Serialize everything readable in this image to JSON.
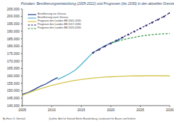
{
  "chart_data": {
    "type": "line",
    "title": "Potsdam:  Bevölkerungsentwicklung (2005-2022) und Prognosen (bis 2030) in den aktuellen Grenzen",
    "annotations": [
      "By Hans G. Oberlack",
      "Quellen: Amt für Statistik Berlin-Brandenburg, Landesamt für Bauen und Verkehr"
    ],
    "x": [
      2005,
      2006,
      2007,
      2008,
      2009,
      2010,
      2011,
      2012,
      2013,
      2014,
      2015,
      2016,
      2017,
      2018,
      2019,
      2020,
      2021,
      2022,
      2023,
      2024,
      2025,
      2026,
      2027,
      2028,
      2029,
      2030
    ],
    "xlim": [
      2005,
      2030
    ],
    "xticks": [
      2005,
      2010,
      2015,
      2020,
      2025,
      2030
    ],
    "ylim": [
      140000,
      205000
    ],
    "yticks": [
      {
        "value": 140000,
        "label": "140.000"
      },
      {
        "value": 145000,
        "label": "145.000"
      },
      {
        "value": 150000,
        "label": "150.000"
      },
      {
        "value": 155000,
        "label": "155.000"
      },
      {
        "value": 160000,
        "label": "160.000"
      },
      {
        "value": 165000,
        "label": "165.000"
      },
      {
        "value": 170000,
        "label": "170.000"
      },
      {
        "value": 175000,
        "label": "175.000"
      },
      {
        "value": 180000,
        "label": "180.000"
      },
      {
        "value": 185000,
        "label": "185.000"
      },
      {
        "value": 190000,
        "label": "190.000"
      },
      {
        "value": 195000,
        "label": "195.000"
      },
      {
        "value": 200000,
        "label": "200.000"
      },
      {
        "value": 205000,
        "label": "205.000"
      }
    ],
    "grid": false,
    "legend": "upper left",
    "series": [
      {
        "name": "Bevölkerung vor Zensus",
        "color": "#1f3f8f",
        "line_style": "solid",
        "values": [
          147600,
          148800,
          150800,
          152900,
          154600,
          156900,
          158900,
          null,
          null,
          null,
          null,
          null,
          null,
          null,
          null,
          null,
          null,
          null,
          null,
          null,
          null,
          null,
          null,
          null,
          null,
          null
        ]
      },
      {
        "name": "Bevölkerung nach Zensus",
        "color": "#4ab3c8",
        "line_style": "solid",
        "values": [
          null,
          null,
          null,
          null,
          null,
          null,
          157600,
          159500,
          161500,
          164000,
          167700,
          171800,
          175700,
          178100,
          180300,
          182100,
          183200,
          185800,
          null,
          null,
          null,
          null,
          null,
          null,
          null,
          null
        ]
      },
      {
        "name": "Prognose des Landes BB 2005-2030",
        "color": "#d4c24a",
        "line_style": "solid",
        "values": [
          147000,
          148500,
          150000,
          151300,
          152500,
          153600,
          154600,
          155500,
          156300,
          157000,
          157600,
          158100,
          158500,
          158900,
          159200,
          159400,
          159600,
          159800,
          159900,
          160000,
          160000,
          160100,
          160100,
          160100,
          160100,
          160000
        ]
      },
      {
        "name": "Prognose des Landes BB 2017-2030",
        "color": "#3b2a7a",
        "line_style": "dashed",
        "marker": "circle",
        "values": [
          null,
          null,
          null,
          null,
          null,
          null,
          null,
          null,
          null,
          null,
          null,
          null,
          175700,
          177800,
          180000,
          182000,
          184000,
          186000,
          188000,
          190000,
          192000,
          194000,
          196000,
          198000,
          200000,
          202500
        ]
      },
      {
        "name": "Prognose des Landes BB 2020-2030",
        "color": "#3a9a4a",
        "line_style": "dashed",
        "values": [
          null,
          null,
          null,
          null,
          null,
          null,
          null,
          null,
          null,
          null,
          null,
          null,
          null,
          null,
          null,
          182100,
          183200,
          184300,
          185200,
          186000,
          186700,
          187300,
          187800,
          188100,
          188300,
          188500
        ]
      }
    ]
  }
}
